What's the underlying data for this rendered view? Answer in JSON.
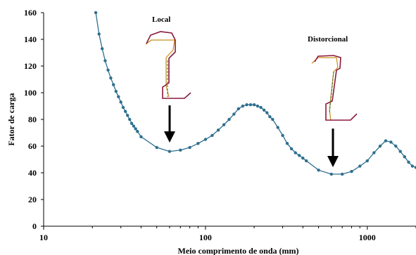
{
  "chart_data": {
    "type": "scatter",
    "title": "",
    "xlabel": "Meio comprimento de onda (mm)",
    "ylabel": "Fator de carga",
    "x_scale": "log",
    "xlim": [
      10,
      2000
    ],
    "ylim": [
      0,
      160
    ],
    "x_ticks": [
      10,
      100,
      1000
    ],
    "y_ticks": [
      0,
      20,
      40,
      60,
      80,
      100,
      120,
      140,
      160
    ],
    "grid": false,
    "legend": "none",
    "line_color": "#2e6f8e",
    "marker_color": "#2e6f8e",
    "series": [
      {
        "x": [
          21,
          22,
          23,
          24,
          25,
          26,
          27,
          28,
          29,
          30,
          31,
          32,
          33,
          34,
          35,
          36,
          37,
          38,
          40,
          50,
          60,
          70,
          80,
          90,
          100,
          110,
          120,
          130,
          140,
          150,
          160,
          170,
          180,
          190,
          200,
          210,
          220,
          230,
          240,
          250,
          260,
          280,
          300,
          320,
          340,
          360,
          380,
          400,
          420,
          500,
          600,
          700,
          800,
          900,
          1000,
          1100,
          1200,
          1300,
          1400,
          1500,
          1600,
          1700,
          1800,
          1900,
          2000
        ],
        "values": [
          160,
          144,
          133,
          124,
          117,
          111,
          106,
          101,
          97,
          93,
          89,
          86,
          83,
          80,
          77,
          75,
          73,
          71,
          67,
          59,
          56,
          57,
          59,
          62,
          65,
          68,
          72,
          76,
          80,
          84,
          88,
          90,
          91,
          91,
          91,
          90,
          89,
          87,
          85,
          82,
          80,
          74,
          68,
          62,
          58,
          55,
          53,
          51,
          49,
          42,
          39,
          39,
          41,
          45,
          49,
          55,
          60,
          64,
          63,
          60,
          56,
          52,
          48,
          45,
          44
        ]
      }
    ],
    "annotations": [
      {
        "text": "Local",
        "x": 60,
        "y": 56
      },
      {
        "text": "Distorcional",
        "x": 600,
        "y": 39
      }
    ]
  }
}
